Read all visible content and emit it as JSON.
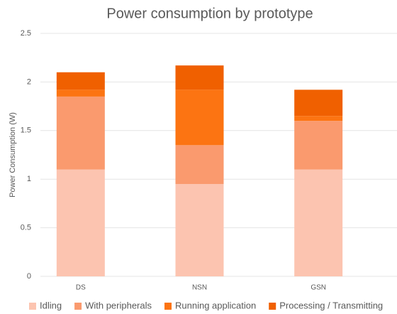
{
  "chart_data": {
    "type": "stacked_bar",
    "title": "Power consumption by prototype",
    "y_label": "Power Consumption (W)",
    "categories": [
      "DS",
      "NSN",
      "GSN"
    ],
    "series": [
      {
        "name": "Idling",
        "color": "#fcc4b0",
        "values": [
          1.1,
          0.95,
          1.1
        ]
      },
      {
        "name": "With peripherals",
        "color": "#fa9a6e",
        "values": [
          0.75,
          0.4,
          0.5
        ]
      },
      {
        "name": "Running application",
        "color": "#fc7412",
        "values": [
          0.07,
          0.57,
          0.05
        ]
      },
      {
        "name": "Processing / Transmitting",
        "color": "#f06000",
        "values": [
          0.18,
          0.25,
          0.27
        ]
      }
    ],
    "ylim": [
      0,
      2.5
    ],
    "yticks": [
      0,
      0.5,
      1,
      1.5,
      2,
      2.5
    ],
    "grid": true,
    "legend": "bottom"
  }
}
